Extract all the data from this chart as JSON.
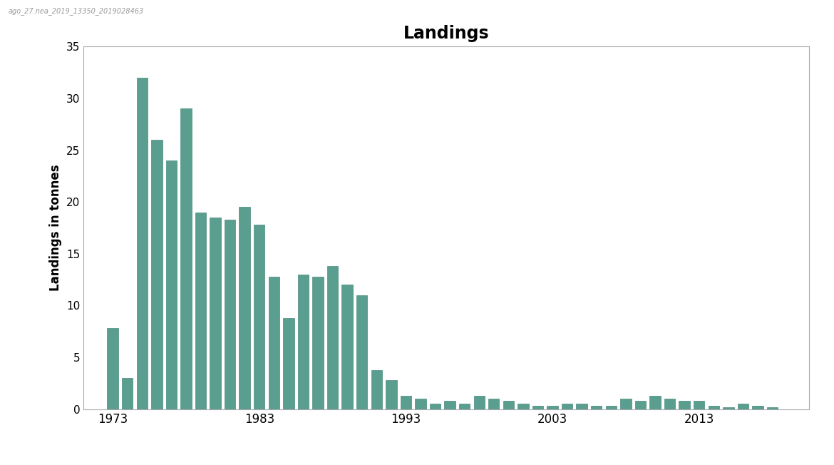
{
  "title": "Landings",
  "ylabel": "Landings in tonnes",
  "bar_color": "#5a9e8f",
  "edge_color": "#4a8a7f",
  "background_color": "#ffffff",
  "ylim": [
    0,
    35
  ],
  "yticks": [
    0,
    5,
    10,
    15,
    20,
    25,
    30,
    35
  ],
  "years": [
    1973,
    1974,
    1975,
    1976,
    1977,
    1978,
    1979,
    1980,
    1981,
    1982,
    1983,
    1984,
    1985,
    1986,
    1987,
    1988,
    1989,
    1990,
    1991,
    1992,
    1993,
    1994,
    1995,
    1996,
    1997,
    1998,
    1999,
    2000,
    2001,
    2002,
    2003,
    2004,
    2005,
    2006,
    2007,
    2008,
    2009,
    2010,
    2011,
    2012,
    2013,
    2014,
    2015,
    2016,
    2017,
    2018
  ],
  "values": [
    7.8,
    3.0,
    32.0,
    26.0,
    24.0,
    29.0,
    19.0,
    18.5,
    18.3,
    19.5,
    17.8,
    12.8,
    8.8,
    13.0,
    12.8,
    13.8,
    12.0,
    11.0,
    3.8,
    2.8,
    1.3,
    1.0,
    0.5,
    0.8,
    0.5,
    1.3,
    1.0,
    0.8,
    0.5,
    0.3,
    0.3,
    0.5,
    0.5,
    0.3,
    0.3,
    1.0,
    0.8,
    1.3,
    1.0,
    0.8,
    0.8,
    0.3,
    0.2,
    0.5,
    0.3,
    0.2
  ],
  "xtick_labels": [
    "1973",
    "1983",
    "1993",
    "2003",
    "2013"
  ],
  "xtick_positions": [
    1973,
    1983,
    1993,
    2003,
    2013
  ],
  "watermark": "ago_27.nea_2019_13350_2019028463",
  "xlim_left": 1971.0,
  "xlim_right": 2020.5
}
